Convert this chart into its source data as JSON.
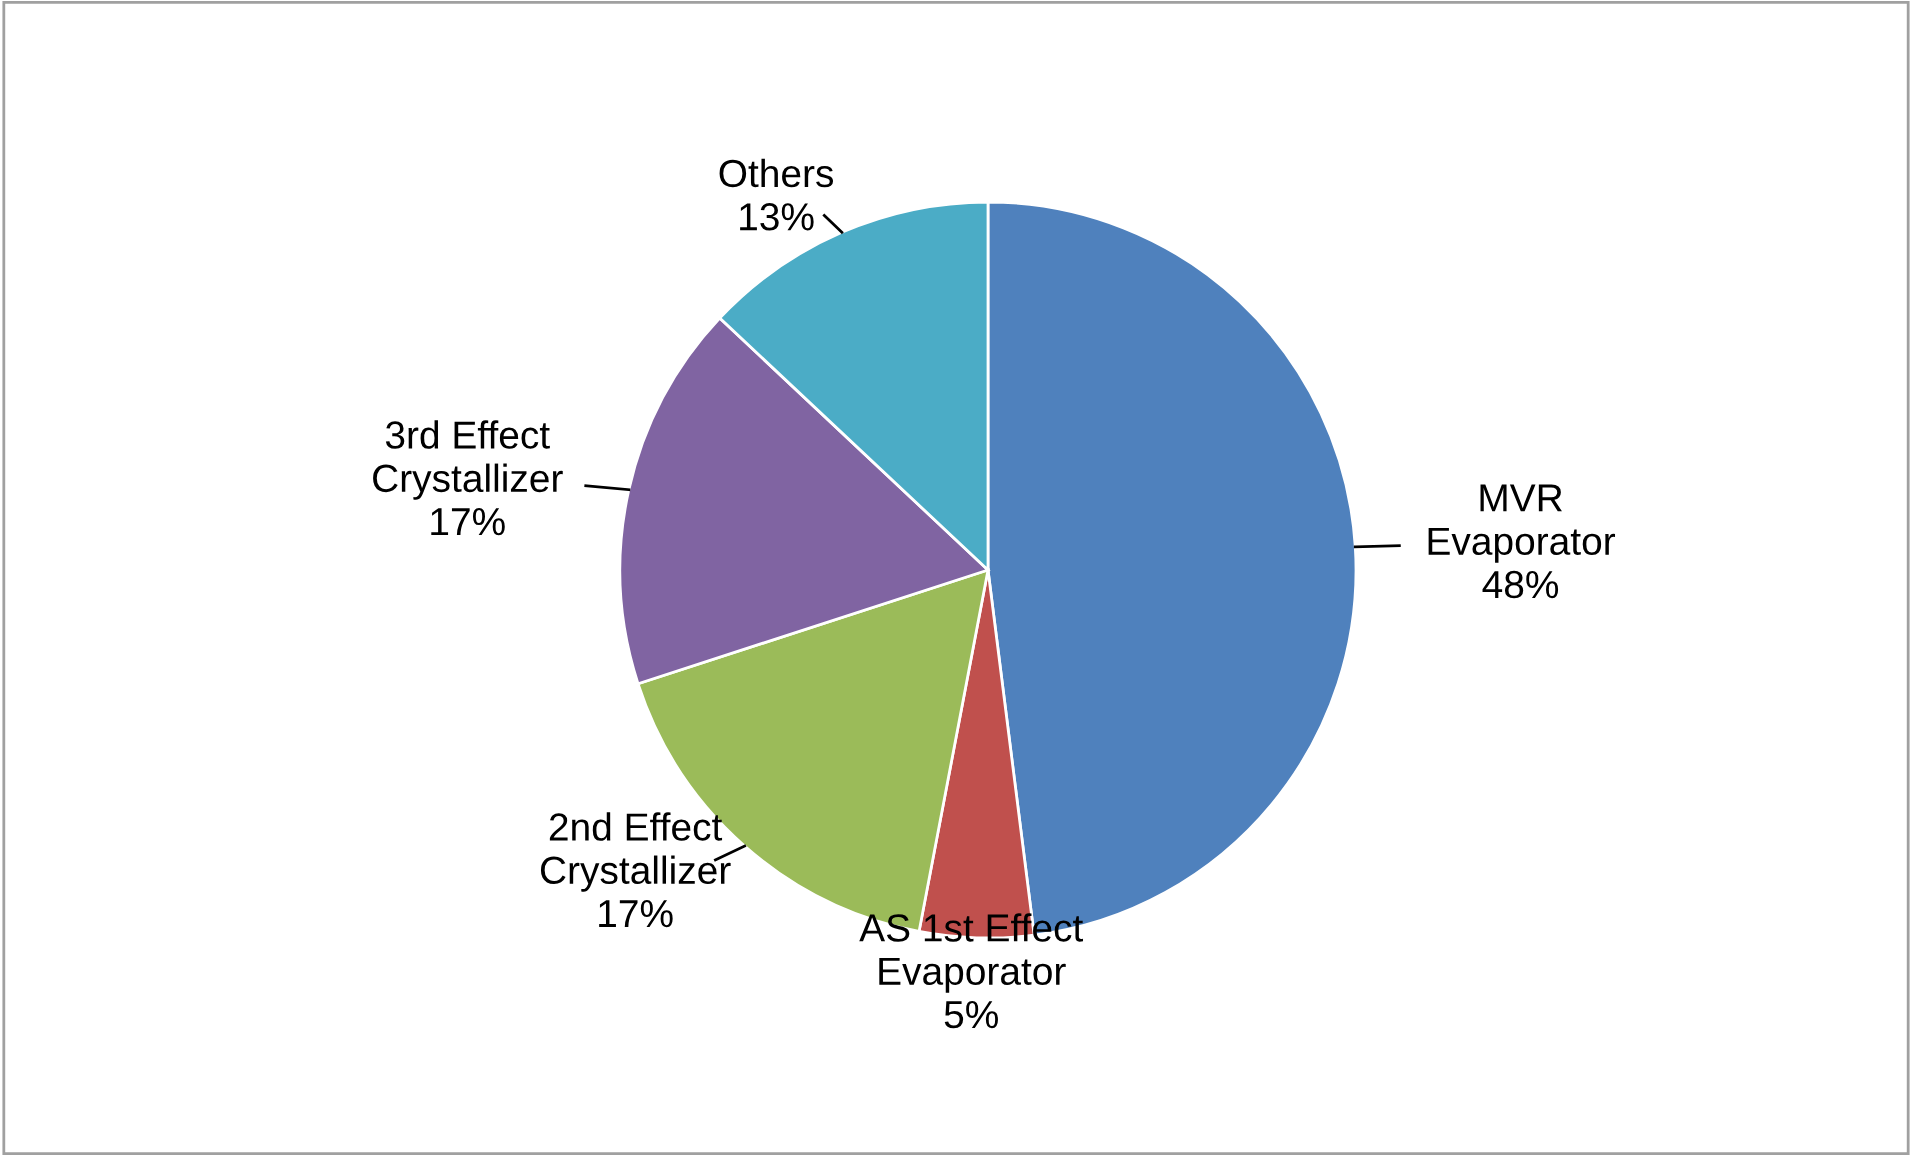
{
  "chart_data": {
    "type": "pie",
    "categories": [
      "MVR\nEvaporator",
      "AS 1st Effect\nEvaporator",
      "2nd Effect\nCrystallizer",
      "3rd Effect\nCrystallizer",
      "Others"
    ],
    "values": [
      48,
      5,
      17,
      17,
      13
    ],
    "value_labels": [
      "48%",
      "5%",
      "17%",
      "17%",
      "13%"
    ],
    "colors": [
      "#4f81bd",
      "#c0504d",
      "#9bbb59",
      "#8064a2",
      "#4bacc6"
    ],
    "legend": false
  }
}
